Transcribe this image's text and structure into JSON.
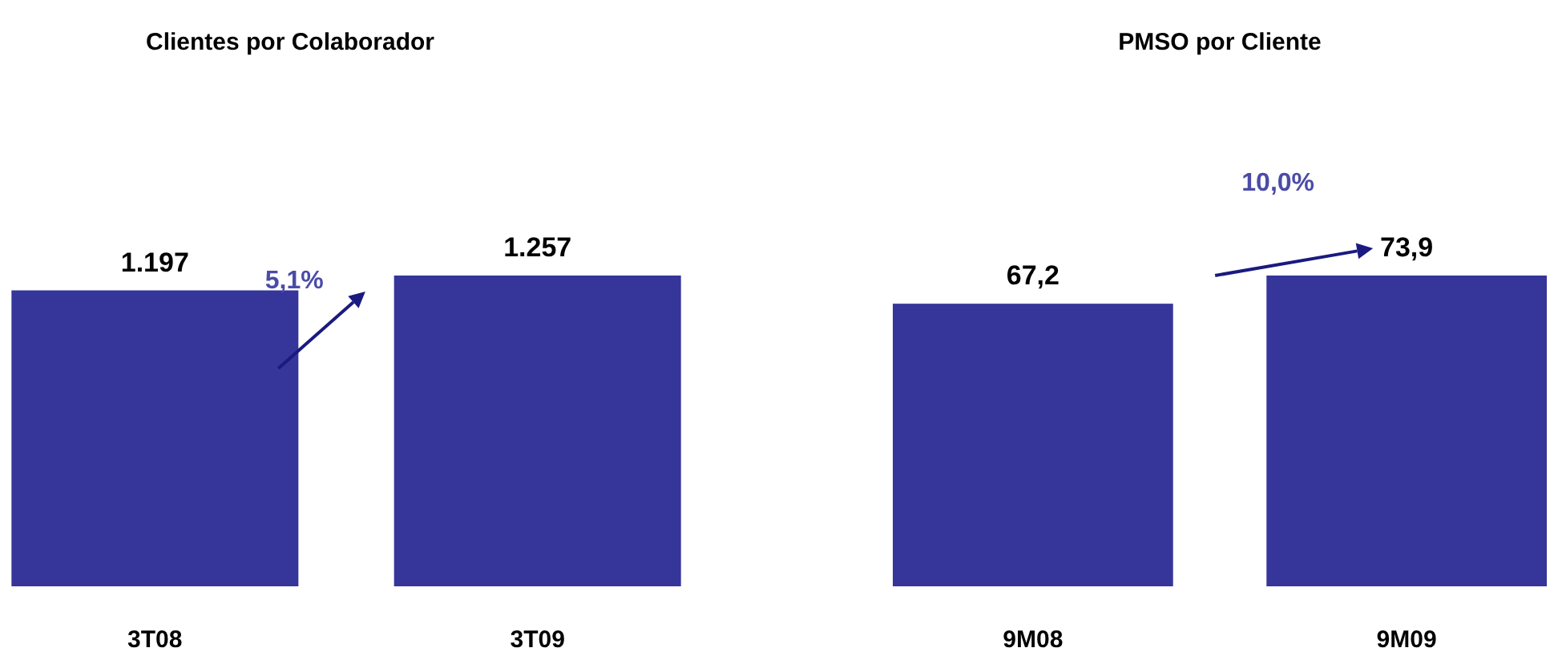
{
  "chart_data": [
    {
      "type": "bar",
      "title": "Clientes por Colaborador",
      "categories": [
        "3T08",
        "3T09"
      ],
      "values": [
        1197,
        1257
      ],
      "value_labels": [
        "1.197",
        "1.257"
      ],
      "color": "#35359a",
      "tick_labels": "x",
      "annotations": [
        "5,1%"
      ]
    },
    {
      "type": "bar",
      "title": "PMSO por Cliente",
      "categories": [
        "9M08",
        "9M09"
      ],
      "values": [
        67.2,
        73.9
      ],
      "value_labels": [
        "67,2",
        "73,9"
      ],
      "color": "#35359a",
      "tick_labels": "x",
      "annotations": [
        "10,0%"
      ]
    }
  ]
}
